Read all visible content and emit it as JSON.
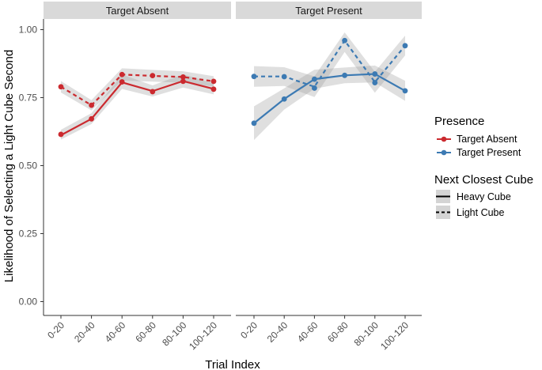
{
  "chart_data": {
    "type": "line",
    "xlabel": "Trial Index",
    "ylabel": "Likelihood of Selecting a Light Cube Second",
    "ylim": [
      0,
      1
    ],
    "yticks": [
      "0.00",
      "0.25",
      "0.50",
      "0.75",
      "1.00"
    ],
    "ytick_values": [
      0,
      0.25,
      0.5,
      0.75,
      1.0
    ],
    "categories": [
      "0-20",
      "20-40",
      "40-60",
      "60-80",
      "80-100",
      "100-120"
    ],
    "legend_presence": {
      "title": "Presence",
      "items": [
        {
          "label": "Target Absent",
          "color": "#CB2A2F"
        },
        {
          "label": "Target Present",
          "color": "#3C7AB3"
        }
      ]
    },
    "legend_cube": {
      "title": "Next Closest Cube",
      "items": [
        {
          "label": "Heavy Cube",
          "linetype": "solid"
        },
        {
          "label": "Light Cube",
          "linetype": "dashed"
        }
      ]
    },
    "panels": [
      {
        "title": "Target Absent",
        "series": [
          {
            "presence": "Target Absent",
            "cube": "Heavy Cube",
            "color": "#CB2A2F",
            "linetype": "solid",
            "points": [
              0.615,
              0.672,
              0.808,
              0.772,
              0.81,
              0.781
            ],
            "fit": [
              0.612,
              0.672,
              0.806,
              0.774,
              0.811,
              0.782
            ],
            "ci_low": [
              0.596,
              0.653,
              0.782,
              0.754,
              0.787,
              0.762
            ],
            "ci_high": [
              0.632,
              0.693,
              0.835,
              0.795,
              0.836,
              0.802
            ]
          },
          {
            "presence": "Target Absent",
            "cube": "Light Cube",
            "color": "#CB2A2F",
            "linetype": "dashed",
            "points": [
              0.79,
              0.722,
              0.835,
              0.831,
              0.826,
              0.81
            ],
            "fit": [
              0.79,
              0.722,
              0.835,
              0.83,
              0.826,
              0.81
            ],
            "ci_low": [
              0.769,
              0.703,
              0.813,
              0.809,
              0.805,
              0.791
            ],
            "ci_high": [
              0.811,
              0.741,
              0.858,
              0.852,
              0.847,
              0.829
            ]
          }
        ]
      },
      {
        "title": "Target Present",
        "series": [
          {
            "presence": "Target Present",
            "cube": "Heavy Cube",
            "color": "#3C7AB3",
            "linetype": "solid",
            "points": [
              0.656,
              0.745,
              0.818,
              0.832,
              0.837,
              0.775
            ],
            "fit": [
              0.656,
              0.745,
              0.818,
              0.832,
              0.837,
              0.775
            ],
            "ci_low": [
              0.594,
              0.706,
              0.783,
              0.803,
              0.806,
              0.738
            ],
            "ci_high": [
              0.718,
              0.784,
              0.853,
              0.861,
              0.868,
              0.812
            ]
          },
          {
            "presence": "Target Present",
            "cube": "Light Cube",
            "color": "#3C7AB3",
            "linetype": "dashed",
            "points": [
              0.828,
              0.827,
              0.785,
              0.96,
              0.805,
              0.941
            ],
            "fit": [
              0.828,
              0.828,
              0.79,
              0.96,
              0.807,
              0.941
            ],
            "ci_low": [
              0.79,
              0.793,
              0.752,
              0.918,
              0.768,
              0.905
            ],
            "ci_high": [
              0.866,
              0.862,
              0.828,
              0.99,
              0.845,
              0.978
            ]
          }
        ]
      }
    ]
  }
}
